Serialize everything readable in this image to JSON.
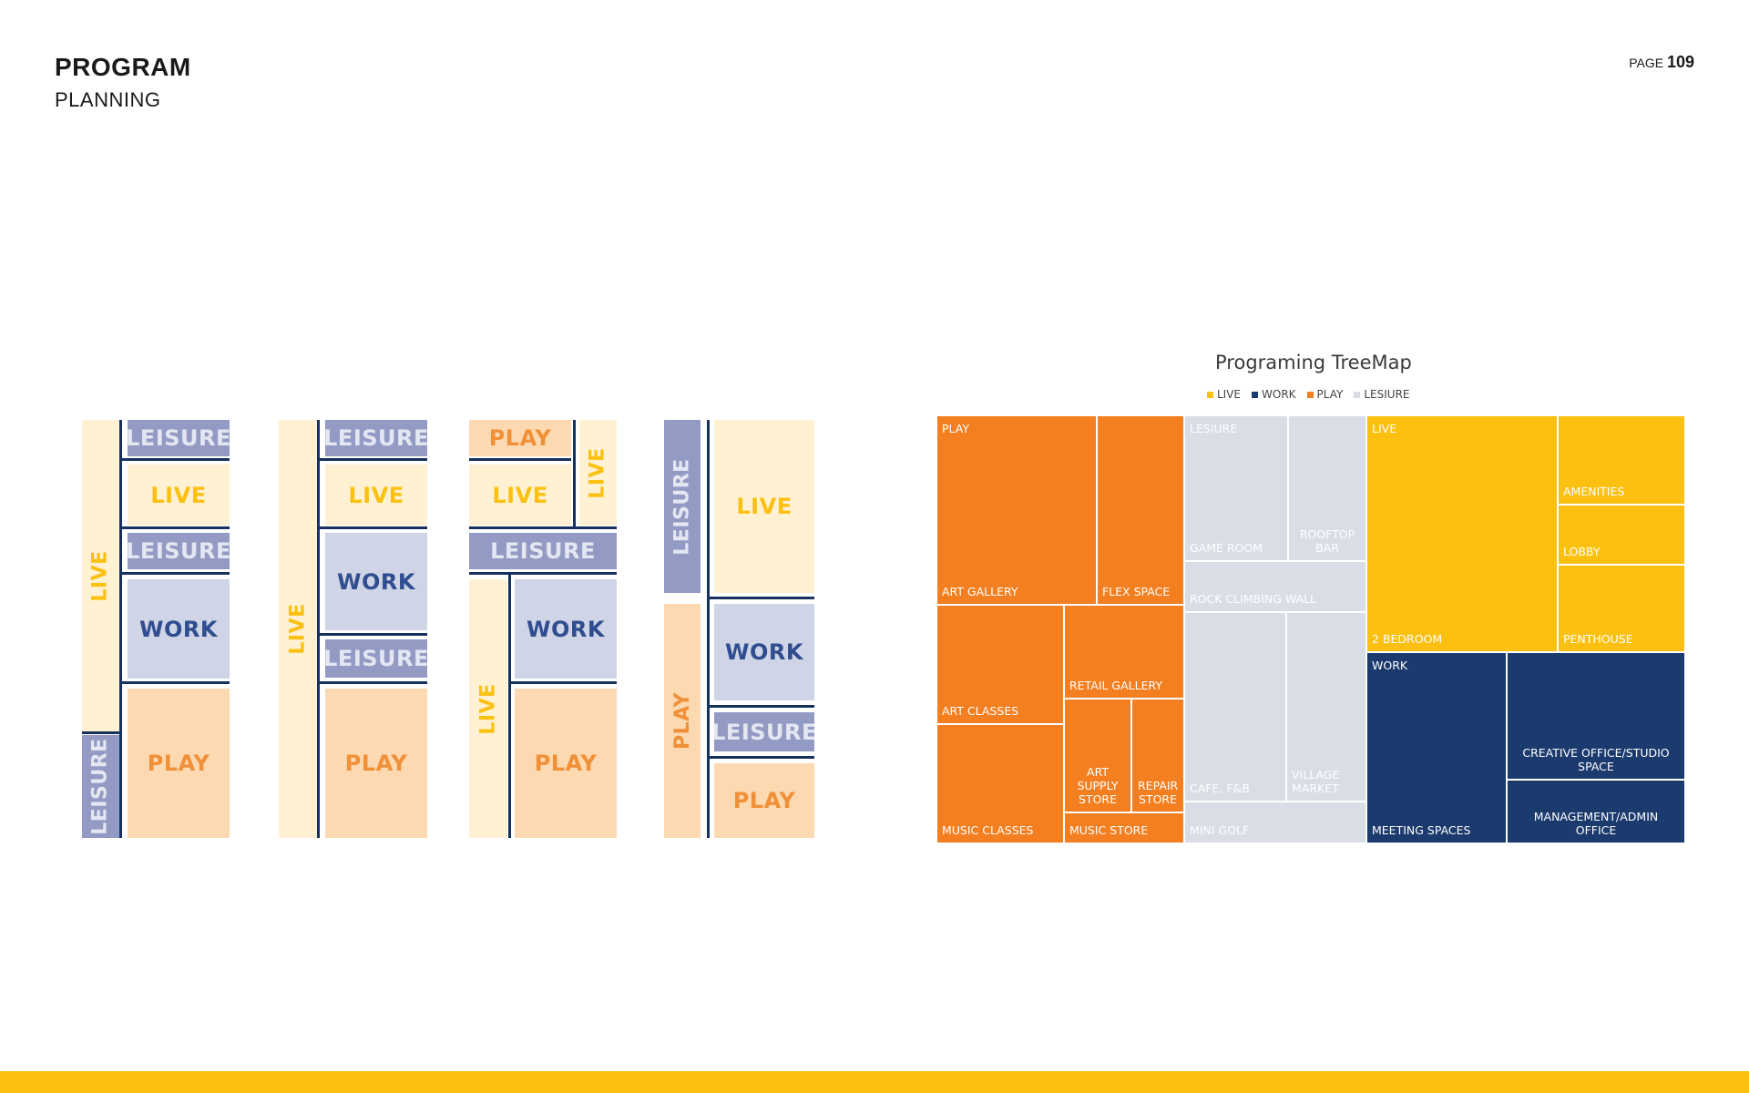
{
  "header": {
    "title": "PROGRAM",
    "subtitle": "PLANNING",
    "page_label": "PAGE",
    "page_number": "109"
  },
  "colors": {
    "live": "#fcc011",
    "work": "#1b3a6e",
    "play": "#f47f20",
    "leisure": "#d9dde6",
    "live_light": "#fff1d1",
    "work_light": "#cfd4e6",
    "play_light": "#fcd9b1",
    "leisure_dark": "#939bc4",
    "line": "#17315f",
    "footer": "#fcc011"
  },
  "diagram_labels": {
    "live": "LIVE",
    "work": "WORK",
    "play": "PLAY",
    "leisure": "LEISURE"
  },
  "treemap": {
    "title": "Programing TreeMap",
    "legend": [
      {
        "name": "LIVE",
        "color": "#fcc011"
      },
      {
        "name": "WORK",
        "color": "#1b3a6e"
      },
      {
        "name": "PLAY",
        "color": "#f47f20"
      },
      {
        "name": "LESIURE",
        "color": "#d9dde6"
      }
    ],
    "group_headers": {
      "play": "PLAY",
      "leisure": "LESIURE",
      "live": "LIVE",
      "work": "WORK"
    },
    "cells": {
      "art_gallery": "ART GALLERY",
      "flex_space": "FLEX SPACE",
      "art_classes": "ART CLASSES",
      "retail_gallery": "RETAIL GALLERY",
      "art_supply_store": "ART SUPPLY STORE",
      "repair_store": "REPAIR STORE",
      "music_classes": "MUSIC CLASSES",
      "music_store": "MUSIC STORE",
      "game_room": "GAME ROOM",
      "rooftop_bar": "ROOFTOP BAR",
      "rock_climbing_wall": "ROCK CLIMBING WALL",
      "cafe_fb": "CAFÉ, F&B",
      "village_market": "VILLAGE MARKET",
      "mini_golf": "MINI GOLF",
      "two_bedroom": "2 BEDROOM",
      "amenities": "AMENITIES",
      "lobby": "LOBBY",
      "penthouse": "PENTHOUSE",
      "meeting_spaces": "MEETING SPACES",
      "creative_office": "CREATIVE OFFICE/STUDIO SPACE",
      "management_office": "MANAGEMENT/ADMIN OFFICE"
    }
  }
}
